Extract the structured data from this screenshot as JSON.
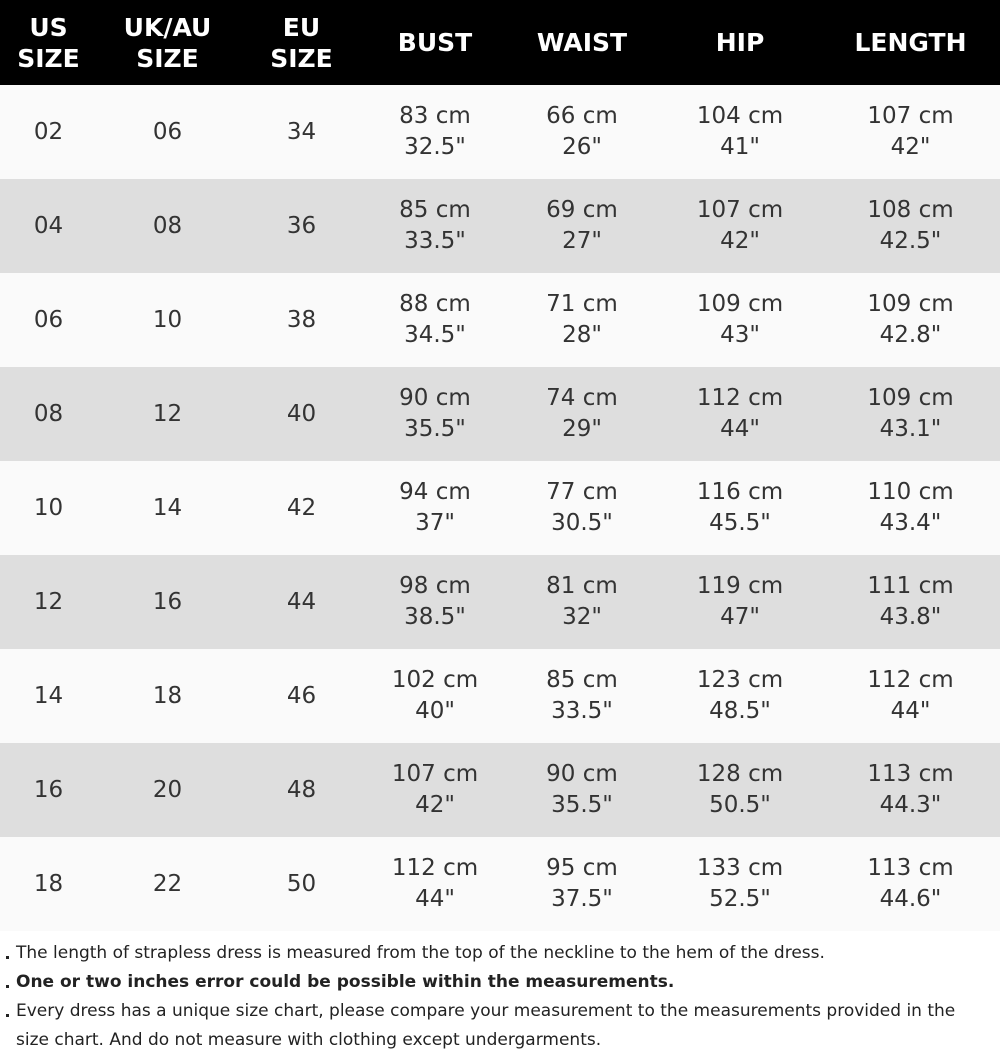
{
  "table": {
    "header": [
      [
        "US",
        "SIZE"
      ],
      [
        "UK/AU",
        "SIZE"
      ],
      [
        "EU",
        "SIZE"
      ],
      [
        "BUST"
      ],
      [
        "WAIST"
      ],
      [
        "HIP"
      ],
      [
        "LENGTH"
      ]
    ],
    "rows": [
      [
        [
          "02"
        ],
        [
          "06"
        ],
        [
          "34"
        ],
        [
          "83 cm",
          "32.5\""
        ],
        [
          "66 cm",
          "26\""
        ],
        [
          "104 cm",
          "41\""
        ],
        [
          "107 cm",
          "42\""
        ]
      ],
      [
        [
          "04"
        ],
        [
          "08"
        ],
        [
          "36"
        ],
        [
          "85 cm",
          "33.5\""
        ],
        [
          "69 cm",
          "27\""
        ],
        [
          "107 cm",
          "42\""
        ],
        [
          "108 cm",
          "42.5\""
        ]
      ],
      [
        [
          "06"
        ],
        [
          "10"
        ],
        [
          "38"
        ],
        [
          "88 cm",
          "34.5\""
        ],
        [
          "71 cm",
          "28\""
        ],
        [
          "109 cm",
          "43\""
        ],
        [
          "109 cm",
          "42.8\""
        ]
      ],
      [
        [
          "08"
        ],
        [
          "12"
        ],
        [
          "40"
        ],
        [
          "90 cm",
          "35.5\""
        ],
        [
          "74 cm",
          "29\""
        ],
        [
          "112 cm",
          "44\""
        ],
        [
          "109 cm",
          "43.1\""
        ]
      ],
      [
        [
          "10"
        ],
        [
          "14"
        ],
        [
          "42"
        ],
        [
          "94 cm",
          "37\""
        ],
        [
          "77 cm",
          "30.5\""
        ],
        [
          "116 cm",
          "45.5\""
        ],
        [
          "110 cm",
          "43.4\""
        ]
      ],
      [
        [
          "12"
        ],
        [
          "16"
        ],
        [
          "44"
        ],
        [
          "98 cm",
          "38.5\""
        ],
        [
          "81 cm",
          "32\""
        ],
        [
          "119 cm",
          "47\""
        ],
        [
          "111 cm",
          "43.8\""
        ]
      ],
      [
        [
          "14"
        ],
        [
          "18"
        ],
        [
          "46"
        ],
        [
          "102 cm",
          "40\""
        ],
        [
          "85 cm",
          "33.5\""
        ],
        [
          "123 cm",
          "48.5\""
        ],
        [
          "112 cm",
          "44\""
        ]
      ],
      [
        [
          "16"
        ],
        [
          "20"
        ],
        [
          "48"
        ],
        [
          "107 cm",
          "42\""
        ],
        [
          "90 cm",
          "35.5\""
        ],
        [
          "128 cm",
          "50.5\""
        ],
        [
          "113 cm",
          "44.3\""
        ]
      ],
      [
        [
          "18"
        ],
        [
          "22"
        ],
        [
          "50"
        ],
        [
          "112 cm",
          "44\""
        ],
        [
          "95 cm",
          "37.5\""
        ],
        [
          "133 cm",
          "52.5\""
        ],
        [
          "113 cm",
          "44.6\""
        ]
      ]
    ]
  },
  "notes": [
    {
      "text": "The length of strapless dress is measured from the top of the neckline to the hem of the dress.",
      "bold": false
    },
    {
      "text": "One or two inches error could be possible within the measurements.",
      "bold": true
    },
    {
      "text": "Every dress has a unique size chart, please compare your measurement to the measurements provided in the size chart. And do not measure with clothing except undergarments.",
      "bold": false
    }
  ]
}
